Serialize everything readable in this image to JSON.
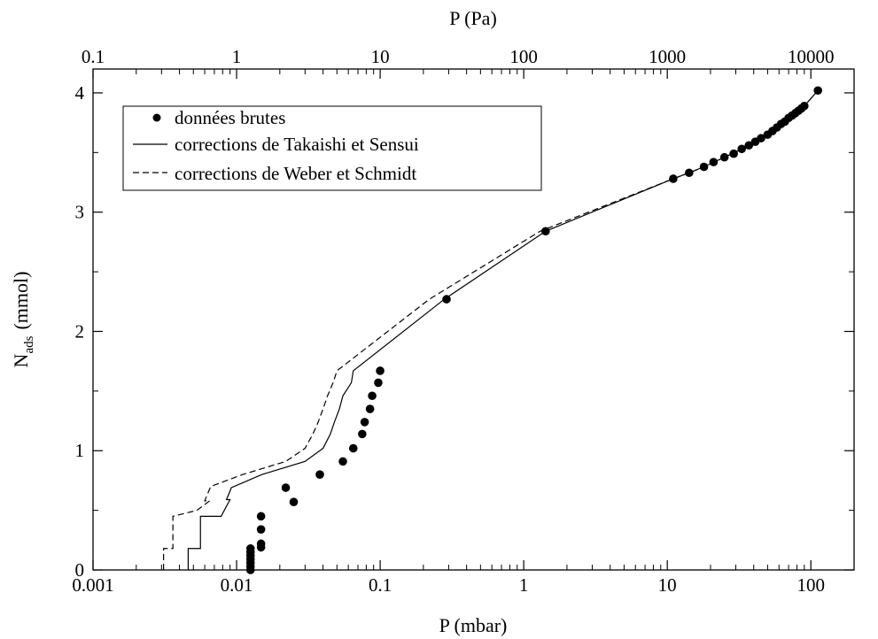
{
  "chart_data": {
    "type": "scatter",
    "title": "",
    "xlabel": "P (mbar)",
    "x2label": "P (Pa)",
    "ylabel_main": "N",
    "ylabel_sub": "ads",
    "ylabel_unit": "(mmol)",
    "x_scale": "log",
    "xlim": [
      0.001,
      200
    ],
    "x2_scale": "log",
    "x2lim": [
      0.1,
      20000
    ],
    "ylim": [
      0,
      4.2
    ],
    "grid": false,
    "legend_position": "top-left",
    "x_ticks": [
      {
        "value": 0.001,
        "label": "0.001"
      },
      {
        "value": 0.01,
        "label": "0.01"
      },
      {
        "value": 0.1,
        "label": "0.1"
      },
      {
        "value": 1,
        "label": "1"
      },
      {
        "value": 10,
        "label": "10"
      },
      {
        "value": 100,
        "label": "100"
      }
    ],
    "x2_ticks": [
      {
        "value": 0.1,
        "label": "0.1"
      },
      {
        "value": 1,
        "label": "1"
      },
      {
        "value": 10,
        "label": "10"
      },
      {
        "value": 100,
        "label": "100"
      },
      {
        "value": 1000,
        "label": "1000"
      },
      {
        "value": 10000,
        "label": "10000"
      }
    ],
    "y_ticks": [
      {
        "value": 0,
        "label": "0"
      },
      {
        "value": 1,
        "label": "1"
      },
      {
        "value": 2,
        "label": "2"
      },
      {
        "value": 3,
        "label": "3"
      },
      {
        "value": 4,
        "label": "4"
      }
    ],
    "y_minor_ticks": [
      0.5,
      1.5,
      2.5,
      3.5
    ],
    "series": [
      {
        "name": "données brutes",
        "style": "markers",
        "color": "#000000",
        "points": [
          [
            0.0125,
            0.0
          ],
          [
            0.0125,
            0.03
          ],
          [
            0.0125,
            0.06
          ],
          [
            0.0125,
            0.09
          ],
          [
            0.0125,
            0.12
          ],
          [
            0.0125,
            0.15
          ],
          [
            0.0125,
            0.18
          ],
          [
            0.0148,
            0.19
          ],
          [
            0.0148,
            0.22
          ],
          [
            0.0148,
            0.34
          ],
          [
            0.0148,
            0.45
          ],
          [
            0.022,
            0.69
          ],
          [
            0.025,
            0.57
          ],
          [
            0.038,
            0.8
          ],
          [
            0.055,
            0.91
          ],
          [
            0.065,
            1.02
          ],
          [
            0.075,
            1.14
          ],
          [
            0.078,
            1.24
          ],
          [
            0.085,
            1.35
          ],
          [
            0.088,
            1.46
          ],
          [
            0.097,
            1.57
          ],
          [
            0.1,
            1.67
          ],
          [
            0.29,
            2.27
          ],
          [
            1.42,
            2.84
          ],
          [
            11.0,
            3.28
          ],
          [
            14.2,
            3.33
          ],
          [
            18.0,
            3.38
          ],
          [
            21.0,
            3.42
          ],
          [
            25.0,
            3.46
          ],
          [
            29.0,
            3.49
          ],
          [
            33.0,
            3.53
          ],
          [
            37.0,
            3.56
          ],
          [
            41.0,
            3.59
          ],
          [
            45.0,
            3.62
          ],
          [
            50.0,
            3.65
          ],
          [
            54.0,
            3.68
          ],
          [
            58.0,
            3.71
          ],
          [
            62.0,
            3.74
          ],
          [
            66.0,
            3.76
          ],
          [
            70.0,
            3.79
          ],
          [
            74.0,
            3.81
          ],
          [
            78.0,
            3.83
          ],
          [
            82.0,
            3.85
          ],
          [
            86.0,
            3.87
          ],
          [
            90.0,
            3.89
          ],
          [
            112.0,
            4.02
          ]
        ]
      },
      {
        "name": "corrections de Takaishi et Sensui",
        "style": "solid",
        "color": "#000000",
        "points": [
          [
            0.0046,
            0.0
          ],
          [
            0.0046,
            0.18
          ],
          [
            0.0056,
            0.18
          ],
          [
            0.0056,
            0.45
          ],
          [
            0.0078,
            0.45
          ],
          [
            0.009,
            0.59
          ],
          [
            0.0085,
            0.59
          ],
          [
            0.0092,
            0.69
          ],
          [
            0.015,
            0.8
          ],
          [
            0.03,
            0.91
          ],
          [
            0.04,
            1.02
          ],
          [
            0.045,
            1.14
          ],
          [
            0.048,
            1.24
          ],
          [
            0.052,
            1.35
          ],
          [
            0.055,
            1.46
          ],
          [
            0.063,
            1.57
          ],
          [
            0.065,
            1.67
          ],
          [
            0.28,
            2.27
          ],
          [
            1.42,
            2.84
          ],
          [
            11.0,
            3.28
          ],
          [
            14.2,
            3.33
          ],
          [
            18.0,
            3.38
          ],
          [
            25.0,
            3.46
          ],
          [
            33.0,
            3.53
          ],
          [
            45.0,
            3.62
          ],
          [
            58.0,
            3.71
          ],
          [
            70.0,
            3.79
          ],
          [
            82.0,
            3.85
          ],
          [
            90.0,
            3.89
          ],
          [
            112.0,
            4.02
          ]
        ]
      },
      {
        "name": "corrections de Weber et Schmidt",
        "style": "dashed",
        "color": "#000000",
        "points": [
          [
            0.0031,
            0.0
          ],
          [
            0.0031,
            0.18
          ],
          [
            0.0036,
            0.18
          ],
          [
            0.0036,
            0.45
          ],
          [
            0.0053,
            0.5
          ],
          [
            0.0065,
            0.58
          ],
          [
            0.006,
            0.58
          ],
          [
            0.0066,
            0.7
          ],
          [
            0.011,
            0.8
          ],
          [
            0.022,
            0.91
          ],
          [
            0.03,
            1.02
          ],
          [
            0.034,
            1.14
          ],
          [
            0.037,
            1.24
          ],
          [
            0.04,
            1.35
          ],
          [
            0.043,
            1.46
          ],
          [
            0.047,
            1.57
          ],
          [
            0.05,
            1.67
          ],
          [
            0.22,
            2.27
          ],
          [
            1.3,
            2.84
          ],
          [
            11.0,
            3.28
          ],
          [
            14.2,
            3.33
          ],
          [
            18.0,
            3.38
          ],
          [
            25.0,
            3.46
          ],
          [
            33.0,
            3.53
          ],
          [
            45.0,
            3.62
          ],
          [
            58.0,
            3.71
          ],
          [
            70.0,
            3.79
          ],
          [
            82.0,
            3.85
          ],
          [
            90.0,
            3.89
          ],
          [
            112.0,
            4.02
          ]
        ]
      }
    ]
  }
}
